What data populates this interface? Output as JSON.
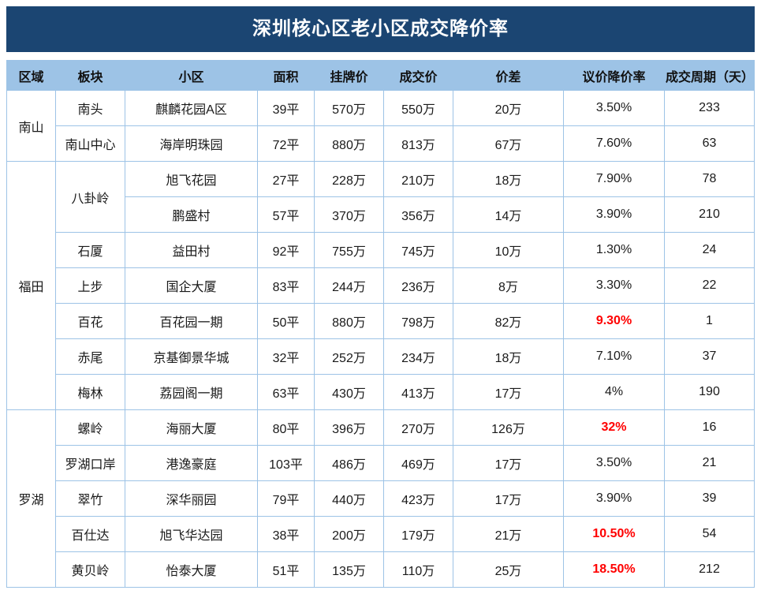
{
  "colors": {
    "title_bg": "#1b4572",
    "header_bg": "#9dc3e6",
    "border": "#9dc3e6",
    "highlight_red": "#ff0000"
  },
  "chart_data": {
    "type": "table",
    "title": "深圳核心区老小区成交降价率",
    "columns": [
      "区域",
      "板块",
      "小区",
      "面积",
      "挂牌价",
      "成交价",
      "价差",
      "议价降价率",
      "成交周期（天）"
    ],
    "groups": [
      {
        "region": "南山",
        "rows": [
          {
            "plate": "南头",
            "community": "麒麟花园A区",
            "area": "39平",
            "listing": "570万",
            "deal": "550万",
            "diff": "20万",
            "rate": "3.50%",
            "red": false,
            "cycle": "233"
          },
          {
            "plate": "南山中心",
            "community": "海岸明珠园",
            "area": "72平",
            "listing": "880万",
            "deal": "813万",
            "diff": "67万",
            "rate": "7.60%",
            "red": false,
            "cycle": "63"
          }
        ]
      },
      {
        "region": "福田",
        "rows": [
          {
            "plate": "八卦岭",
            "span": 2,
            "community": "旭飞花园",
            "area": "27平",
            "listing": "228万",
            "deal": "210万",
            "diff": "18万",
            "rate": "7.90%",
            "red": false,
            "cycle": "78"
          },
          {
            "plate": null,
            "community": "鹏盛村",
            "area": "57平",
            "listing": "370万",
            "deal": "356万",
            "diff": "14万",
            "rate": "3.90%",
            "red": false,
            "cycle": "210"
          },
          {
            "plate": "石厦",
            "community": "益田村",
            "area": "92平",
            "listing": "755万",
            "deal": "745万",
            "diff": "10万",
            "rate": "1.30%",
            "red": false,
            "cycle": "24"
          },
          {
            "plate": "上步",
            "community": "国企大厦",
            "area": "83平",
            "listing": "244万",
            "deal": "236万",
            "diff": "8万",
            "rate": "3.30%",
            "red": false,
            "cycle": "22"
          },
          {
            "plate": "百花",
            "community": "百花园一期",
            "area": "50平",
            "listing": "880万",
            "deal": "798万",
            "diff": "82万",
            "rate": "9.30%",
            "red": true,
            "cycle": "1"
          },
          {
            "plate": "赤尾",
            "community": "京基御景华城",
            "area": "32平",
            "listing": "252万",
            "deal": "234万",
            "diff": "18万",
            "rate": "7.10%",
            "red": false,
            "cycle": "37"
          },
          {
            "plate": "梅林",
            "community": "荔园阁一期",
            "area": "63平",
            "listing": "430万",
            "deal": "413万",
            "diff": "17万",
            "rate": "4%",
            "red": false,
            "cycle": "190"
          }
        ]
      },
      {
        "region": "罗湖",
        "rows": [
          {
            "plate": "螺岭",
            "community": "海丽大厦",
            "area": "80平",
            "listing": "396万",
            "deal": "270万",
            "diff": "126万",
            "rate": "32%",
            "red": true,
            "cycle": "16"
          },
          {
            "plate": "罗湖口岸",
            "community": "港逸豪庭",
            "area": "103平",
            "listing": "486万",
            "deal": "469万",
            "diff": "17万",
            "rate": "3.50%",
            "red": false,
            "cycle": "21"
          },
          {
            "plate": "翠竹",
            "community": "深华丽园",
            "area": "79平",
            "listing": "440万",
            "deal": "423万",
            "diff": "17万",
            "rate": "3.90%",
            "red": false,
            "cycle": "39"
          },
          {
            "plate": "百仕达",
            "community": "旭飞华达园",
            "area": "38平",
            "listing": "200万",
            "deal": "179万",
            "diff": "21万",
            "rate": "10.50%",
            "red": true,
            "cycle": "54"
          },
          {
            "plate": "黄贝岭",
            "community": "怡泰大厦",
            "area": "51平",
            "listing": "135万",
            "deal": "110万",
            "diff": "25万",
            "rate": "18.50%",
            "red": true,
            "cycle": "212"
          }
        ]
      }
    ]
  }
}
